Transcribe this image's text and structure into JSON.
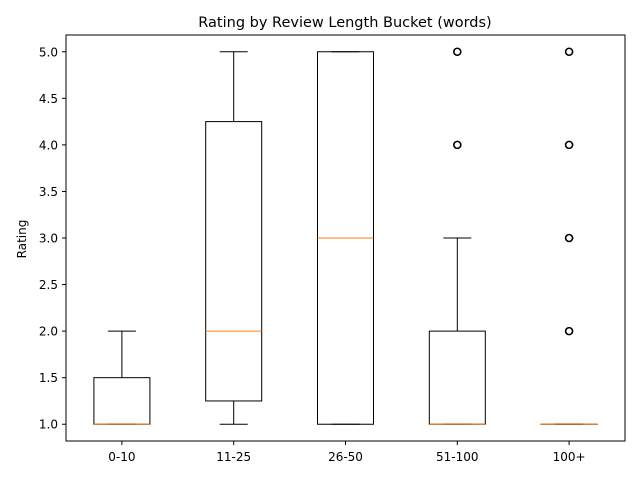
{
  "chart_data": {
    "type": "box",
    "title": "Rating by Review Length Bucket (words)",
    "xlabel": "",
    "ylabel": "Rating",
    "ylim": [
      0.82,
      5.18
    ],
    "yticks": [
      1.0,
      1.5,
      2.0,
      2.5,
      3.0,
      3.5,
      4.0,
      4.5,
      5.0
    ],
    "ytick_labels": [
      "1.0",
      "1.5",
      "2.0",
      "2.5",
      "3.0",
      "3.5",
      "4.0",
      "4.5",
      "5.0"
    ],
    "grid": false,
    "categories": [
      "0-10",
      "11-25",
      "26-50",
      "51-100",
      "100+"
    ],
    "boxes": [
      {
        "category": "0-10",
        "whisker_low": 1.0,
        "q1": 1.0,
        "median": 1.0,
        "q3": 1.5,
        "whisker_high": 2.0,
        "outliers": []
      },
      {
        "category": "11-25",
        "whisker_low": 1.0,
        "q1": 1.25,
        "median": 2.0,
        "q3": 4.25,
        "whisker_high": 5.0,
        "outliers": []
      },
      {
        "category": "26-50",
        "whisker_low": 1.0,
        "q1": 1.0,
        "median": 3.0,
        "q3": 5.0,
        "whisker_high": 5.0,
        "outliers": []
      },
      {
        "category": "51-100",
        "whisker_low": 1.0,
        "q1": 1.0,
        "median": 1.0,
        "q3": 2.0,
        "whisker_high": 3.0,
        "outliers": [
          4.0,
          5.0
        ]
      },
      {
        "category": "100+",
        "whisker_low": 1.0,
        "q1": 1.0,
        "median": 1.0,
        "q3": 1.0,
        "whisker_high": 1.0,
        "outliers": [
          2.0,
          3.0,
          4.0,
          5.0
        ]
      }
    ],
    "colors": {
      "box": "#000000",
      "median": "#ff7f0e",
      "outlier": "#000000"
    }
  }
}
